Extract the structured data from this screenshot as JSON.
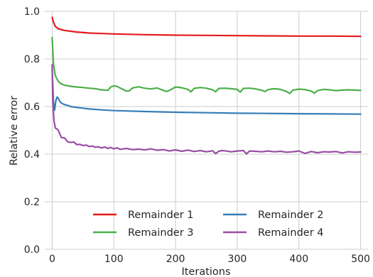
{
  "chart_data": {
    "type": "line",
    "xlabel": "Iterations",
    "ylabel": "Relative error",
    "xlim": [
      -12,
      512
    ],
    "ylim": [
      0.0,
      1.0
    ],
    "xticks": [
      0,
      100,
      200,
      300,
      400,
      500
    ],
    "xtick_labels": [
      "0",
      "100",
      "200",
      "300",
      "400",
      "500"
    ],
    "yticks": [
      0.0,
      0.2,
      0.4,
      0.6,
      0.8,
      1.0
    ],
    "ytick_labels": [
      "0.0",
      "0.2",
      "0.4",
      "0.6",
      "0.8",
      "1.0"
    ],
    "grid": true,
    "legend": {
      "placement": "bottom-center",
      "columns": 2
    },
    "series": [
      {
        "name": "Remainder 1",
        "color": "#e41a1c",
        "x": [
          0,
          2,
          5,
          10,
          20,
          40,
          60,
          100,
          150,
          200,
          250,
          300,
          350,
          400,
          450,
          500
        ],
        "y": [
          0.975,
          0.955,
          0.937,
          0.927,
          0.92,
          0.913,
          0.909,
          0.905,
          0.902,
          0.9,
          0.899,
          0.898,
          0.897,
          0.896,
          0.896,
          0.895
        ]
      },
      {
        "name": "Remainder 2",
        "color": "#377eb8",
        "x": [
          0,
          2,
          4,
          6,
          8,
          10,
          12,
          15,
          20,
          25,
          30,
          40,
          50,
          60,
          80,
          100,
          150,
          200,
          250,
          300,
          350,
          400,
          450,
          500
        ],
        "y": [
          0.76,
          0.62,
          0.585,
          0.625,
          0.64,
          0.635,
          0.624,
          0.614,
          0.608,
          0.605,
          0.6,
          0.596,
          0.593,
          0.59,
          0.586,
          0.583,
          0.579,
          0.576,
          0.574,
          0.572,
          0.571,
          0.57,
          0.569,
          0.568
        ]
      },
      {
        "name": "Remainder 3",
        "color": "#4daf4a",
        "x": [
          0,
          2,
          5,
          10,
          15,
          20,
          30,
          40,
          50,
          60,
          70,
          80,
          90,
          95,
          100,
          105,
          110,
          115,
          120,
          125,
          130,
          140,
          150,
          160,
          170,
          180,
          185,
          190,
          200,
          210,
          220,
          225,
          230,
          240,
          250,
          260,
          265,
          270,
          280,
          290,
          300,
          305,
          310,
          320,
          330,
          340,
          345,
          350,
          360,
          370,
          380,
          385,
          390,
          400,
          410,
          420,
          425,
          430,
          440,
          450,
          460,
          470,
          480,
          490,
          500
        ],
        "y": [
          0.89,
          0.78,
          0.73,
          0.705,
          0.695,
          0.69,
          0.685,
          0.682,
          0.68,
          0.677,
          0.675,
          0.67,
          0.668,
          0.682,
          0.687,
          0.685,
          0.678,
          0.672,
          0.665,
          0.666,
          0.678,
          0.683,
          0.677,
          0.674,
          0.678,
          0.668,
          0.663,
          0.668,
          0.682,
          0.679,
          0.672,
          0.662,
          0.676,
          0.68,
          0.677,
          0.67,
          0.662,
          0.676,
          0.677,
          0.675,
          0.672,
          0.661,
          0.676,
          0.677,
          0.674,
          0.668,
          0.663,
          0.671,
          0.675,
          0.672,
          0.663,
          0.655,
          0.669,
          0.673,
          0.671,
          0.665,
          0.656,
          0.667,
          0.672,
          0.67,
          0.667,
          0.669,
          0.67,
          0.669,
          0.668
        ]
      },
      {
        "name": "Remainder 4",
        "color": "#984ea3",
        "x": [
          0,
          1,
          2,
          3,
          5,
          8,
          10,
          15,
          20,
          25,
          30,
          35,
          40,
          45,
          50,
          55,
          60,
          65,
          70,
          75,
          80,
          85,
          90,
          95,
          100,
          105,
          110,
          120,
          130,
          140,
          150,
          160,
          170,
          180,
          190,
          200,
          210,
          220,
          230,
          240,
          250,
          260,
          265,
          270,
          275,
          280,
          290,
          300,
          310,
          315,
          320,
          330,
          340,
          350,
          360,
          370,
          380,
          390,
          400,
          410,
          420,
          430,
          440,
          450,
          460,
          470,
          480,
          490,
          500
        ],
        "y": [
          0.775,
          0.63,
          0.58,
          0.54,
          0.51,
          0.505,
          0.5,
          0.47,
          0.468,
          0.452,
          0.449,
          0.451,
          0.44,
          0.441,
          0.436,
          0.438,
          0.432,
          0.434,
          0.429,
          0.431,
          0.426,
          0.43,
          0.424,
          0.428,
          0.422,
          0.427,
          0.42,
          0.424,
          0.419,
          0.421,
          0.418,
          0.422,
          0.416,
          0.419,
          0.413,
          0.418,
          0.412,
          0.417,
          0.411,
          0.415,
          0.41,
          0.414,
          0.402,
          0.412,
          0.415,
          0.414,
          0.41,
          0.413,
          0.415,
          0.401,
          0.413,
          0.412,
          0.41,
          0.413,
          0.41,
          0.412,
          0.408,
          0.41,
          0.413,
          0.403,
          0.411,
          0.406,
          0.41,
          0.409,
          0.411,
          0.405,
          0.41,
          0.408,
          0.409
        ]
      }
    ]
  }
}
